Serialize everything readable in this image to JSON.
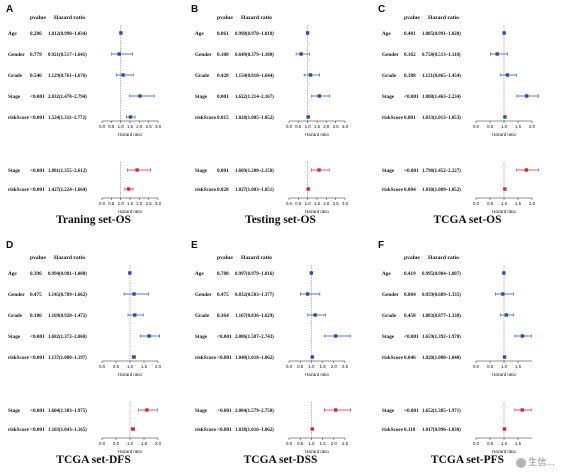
{
  "header": {
    "pvalue": "pvalue",
    "hazard_ratio": "Hazard ratio"
  },
  "axis": {
    "xlabel": "Hazard ratio",
    "ref_line": 1.0
  },
  "colors": {
    "uni": "#2a4f9e",
    "multi": "#d3283a",
    "ref_line": "#888888"
  },
  "watermark": "生信...",
  "chart_data": [
    {
      "panel": "A",
      "title": "Traning set-OS",
      "type": "forest",
      "ticks": [
        "0.0",
        "0.5",
        "1.0",
        "1.5",
        "2.0",
        "2.5",
        "3.0"
      ],
      "xlim": [
        0,
        3.0
      ],
      "univariate": [
        {
          "variable": "Age",
          "pvalue": "0.286",
          "label": "1.012(0.990~1.034)",
          "hr": 1.012,
          "lo": 0.99,
          "hi": 1.034
        },
        {
          "variable": "Gender",
          "pvalue": "0.779",
          "label": "0.921(0.517~1.641)",
          "hr": 0.921,
          "lo": 0.517,
          "hi": 1.641
        },
        {
          "variable": "Grade",
          "pvalue": "0.546",
          "label": "1.129(0.761~1.676)",
          "hr": 1.129,
          "lo": 0.761,
          "hi": 1.676
        },
        {
          "variable": "Stage",
          "pvalue": "<0.001",
          "label": "2.032(1.478~2.794)",
          "hr": 2.032,
          "lo": 1.478,
          "hi": 2.794
        },
        {
          "variable": "riskScore",
          "pvalue": "<0.001",
          "label": "1.524(1.311~1.772)",
          "hr": 1.524,
          "lo": 1.311,
          "hi": 1.772
        }
      ],
      "multivariate": [
        {
          "variable": "Stage",
          "pvalue": "<0.001",
          "label": "1.881(1.355~2.612)",
          "hr": 1.881,
          "lo": 1.355,
          "hi": 2.612
        },
        {
          "variable": "riskScore",
          "pvalue": "<0.001",
          "label": "1.427(1.224~1.664)",
          "hr": 1.427,
          "lo": 1.224,
          "hi": 1.664
        }
      ]
    },
    {
      "panel": "B",
      "title": "Testing set-OS",
      "type": "forest",
      "ticks": [
        "0.0",
        "0.5",
        "1.0",
        "1.5",
        "2.0",
        "2.5",
        "3.0"
      ],
      "xlim": [
        0,
        3.0
      ],
      "univariate": [
        {
          "variable": "Age",
          "pvalue": "0.861",
          "label": "0.998(0.978~1.018)",
          "hr": 0.998,
          "lo": 0.978,
          "hi": 1.018
        },
        {
          "variable": "Gender",
          "pvalue": "0.108",
          "label": "0.649(0.379~1.100)",
          "hr": 0.649,
          "lo": 0.379,
          "hi": 1.1
        },
        {
          "variable": "Grade",
          "pvalue": "0.428",
          "label": "1.154(0.810~1.644)",
          "hr": 1.154,
          "lo": 0.81,
          "hi": 1.644
        },
        {
          "variable": "Stage",
          "pvalue": "0.001",
          "label": "1.622(1.214~2.167)",
          "hr": 1.622,
          "lo": 1.214,
          "hi": 2.167
        },
        {
          "variable": "riskScore",
          "pvalue": "0.015",
          "label": "1.028(1.005~1.052)",
          "hr": 1.028,
          "lo": 1.005,
          "hi": 1.052
        }
      ],
      "multivariate": [
        {
          "variable": "Stage",
          "pvalue": "0.001",
          "label": "1.609(1.200~2.158)",
          "hr": 1.609,
          "lo": 1.2,
          "hi": 2.158
        },
        {
          "variable": "riskScore",
          "pvalue": "0.028",
          "label": "1.027(1.003~1.051)",
          "hr": 1.027,
          "lo": 1.003,
          "hi": 1.051
        }
      ]
    },
    {
      "panel": "C",
      "title": "TCGA set-OS",
      "type": "forest",
      "ticks": [
        "0.0",
        "0.5",
        "1.0",
        "1.5",
        "2.0"
      ],
      "xlim": [
        0,
        2.0
      ],
      "univariate": [
        {
          "variable": "Age",
          "pvalue": "0.481",
          "label": "1.005(0.991~1.020)",
          "hr": 1.005,
          "lo": 0.991,
          "hi": 1.02
        },
        {
          "variable": "Gender",
          "pvalue": "0.162",
          "label": "0.758(0.513~1.118)",
          "hr": 0.758,
          "lo": 0.513,
          "hi": 1.118
        },
        {
          "variable": "Grade",
          "pvalue": "0.388",
          "label": "1.121(0.865~1.454)",
          "hr": 1.121,
          "lo": 0.865,
          "hi": 1.454
        },
        {
          "variable": "Stage",
          "pvalue": "<0.001",
          "label": "1.808(1.463~2.234)",
          "hr": 1.808,
          "lo": 1.463,
          "hi": 2.234
        },
        {
          "variable": "riskScore",
          "pvalue": "0.001",
          "label": "1.033(1.013~1.053)",
          "hr": 1.033,
          "lo": 1.013,
          "hi": 1.053
        }
      ],
      "multivariate": [
        {
          "variable": "Stage",
          "pvalue": "<0.001",
          "label": "1.798(1.452~2.227)",
          "hr": 1.798,
          "lo": 1.452,
          "hi": 2.227
        },
        {
          "variable": "riskScore",
          "pvalue": "0.004",
          "label": "1.030(1.009~1.052)",
          "hr": 1.03,
          "lo": 1.009,
          "hi": 1.052
        }
      ]
    },
    {
      "panel": "D",
      "title": "TCGA set-DFS",
      "type": "forest",
      "ticks": [
        "0.0",
        "0.5",
        "1.0",
        "1.5",
        "2.0"
      ],
      "xlim": [
        0,
        2.0
      ],
      "univariate": [
        {
          "variable": "Age",
          "pvalue": "0.396",
          "label": "0.994(0.981~1.008)",
          "hr": 0.994,
          "lo": 0.981,
          "hi": 1.008
        },
        {
          "variable": "Gender",
          "pvalue": "0.475",
          "label": "1.145(0.789~1.662)",
          "hr": 1.145,
          "lo": 0.789,
          "hi": 1.662
        },
        {
          "variable": "Grade",
          "pvalue": "0.186",
          "label": "1.169(0.928~1.472)",
          "hr": 1.169,
          "lo": 0.928,
          "hi": 1.472
        },
        {
          "variable": "Stage",
          "pvalue": "<0.001",
          "label": "1.682(1.372~2.060)",
          "hr": 1.682,
          "lo": 1.372,
          "hi": 2.06
        },
        {
          "variable": "riskScore",
          "pvalue": "<0.001",
          "label": "1.137(1.080~1.197)",
          "hr": 1.137,
          "lo": 1.08,
          "hi": 1.197
        }
      ],
      "multivariate": [
        {
          "variable": "Stage",
          "pvalue": "<0.001",
          "label": "1.604(1.303~1.975)",
          "hr": 1.604,
          "lo": 1.303,
          "hi": 1.975
        },
        {
          "variable": "riskScore",
          "pvalue": "<0.001",
          "label": "1.103(1.043~1.165)",
          "hr": 1.103,
          "lo": 1.043,
          "hi": 1.165
        }
      ]
    },
    {
      "panel": "E",
      "title": "TCGA set-DSS",
      "type": "forest",
      "ticks": [
        "0.0",
        "0.5",
        "1.0",
        "1.5",
        "2.0",
        "2.5"
      ],
      "xlim": [
        0,
        2.5
      ],
      "univariate": [
        {
          "variable": "Age",
          "pvalue": "0.780",
          "label": "0.997(0.979~1.016)",
          "hr": 0.997,
          "lo": 0.979,
          "hi": 1.016
        },
        {
          "variable": "Gender",
          "pvalue": "0.475",
          "label": "0.832(0.503~1.377)",
          "hr": 0.832,
          "lo": 0.503,
          "hi": 1.377
        },
        {
          "variable": "Grade",
          "pvalue": "0.364",
          "label": "1.167(0.836~1.629)",
          "hr": 1.167,
          "lo": 0.836,
          "hi": 1.629
        },
        {
          "variable": "Stage",
          "pvalue": "<0.001",
          "label": "2.086(1.587~2.743)",
          "hr": 2.086,
          "lo": 1.587,
          "hi": 2.743
        },
        {
          "variable": "riskScore",
          "pvalue": "<0.001",
          "label": "1.040(1.018~1.062)",
          "hr": 1.04,
          "lo": 1.018,
          "hi": 1.062
        }
      ],
      "multivariate": [
        {
          "variable": "Stage",
          "pvalue": "<0.001",
          "label": "2.084(1.579~2.750)",
          "hr": 2.084,
          "lo": 1.579,
          "hi": 2.75
        },
        {
          "variable": "riskScore",
          "pvalue": "<0.001",
          "label": "1.038(1.016~1.062)",
          "hr": 1.038,
          "lo": 1.016,
          "hi": 1.062
        }
      ]
    },
    {
      "panel": "F",
      "title": "TCGA set-PFS",
      "type": "forest",
      "ticks": [
        "0.0",
        "0.5",
        "1.0",
        "1.5"
      ],
      "xlim": [
        0,
        2.0
      ],
      "univariate": [
        {
          "variable": "Age",
          "pvalue": "0.419",
          "label": "0.995(0.984~1.007)",
          "hr": 0.995,
          "lo": 0.984,
          "hi": 1.007
        },
        {
          "variable": "Gender",
          "pvalue": "0.804",
          "label": "0.959(0.689~1.335)",
          "hr": 0.959,
          "lo": 0.689,
          "hi": 1.335
        },
        {
          "variable": "Grade",
          "pvalue": "0.458",
          "label": "1.083(0.877~1.338)",
          "hr": 1.083,
          "lo": 0.877,
          "hi": 1.338
        },
        {
          "variable": "Stage",
          "pvalue": "<0.001",
          "label": "1.659(1.392~1.978)",
          "hr": 1.659,
          "lo": 1.392,
          "hi": 1.978
        },
        {
          "variable": "riskScore",
          "pvalue": "0.046",
          "label": "1.020(1.000~1.040)",
          "hr": 1.02,
          "lo": 1.0,
          "hi": 1.04
        }
      ],
      "multivariate": [
        {
          "variable": "Stage",
          "pvalue": "<0.001",
          "label": "1.652(1.385~1.971)",
          "hr": 1.652,
          "lo": 1.385,
          "hi": 1.971
        },
        {
          "variable": "riskScore",
          "pvalue": "0.110",
          "label": "1.017(0.996~1.038)",
          "hr": 1.017,
          "lo": 0.996,
          "hi": 1.038
        }
      ]
    }
  ]
}
